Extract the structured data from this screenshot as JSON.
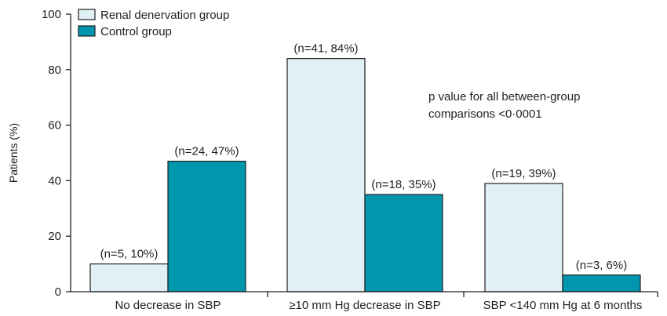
{
  "chart_data": {
    "type": "bar",
    "categories": [
      "No decrease in SBP",
      "≥10 mm Hg decrease in SBP",
      "SBP <140 mm Hg at 6 months"
    ],
    "series": [
      {
        "name": "Renal denervation group",
        "color": "#dff1f4",
        "values": [
          10,
          84,
          39
        ],
        "labels": [
          "(n=5, 10%)",
          "(n=41, 84%)",
          "(n=19, 39%)"
        ]
      },
      {
        "name": "Control group",
        "color": "#0096ad",
        "values": [
          47,
          35,
          6
        ],
        "labels": [
          "(n=24, 47%)",
          "(n=18, 35%)",
          "(n=3, 6%)"
        ]
      }
    ],
    "title": "",
    "xlabel": "",
    "ylabel": "Patients (%)",
    "ylim": [
      0,
      100
    ],
    "yticks": [
      "0",
      "20",
      "40",
      "60",
      "80",
      "100"
    ],
    "legend_position": "top-left",
    "grid": false,
    "annotation_lines": [
      "p value for all between-group",
      "comparisons <0·0001"
    ]
  }
}
